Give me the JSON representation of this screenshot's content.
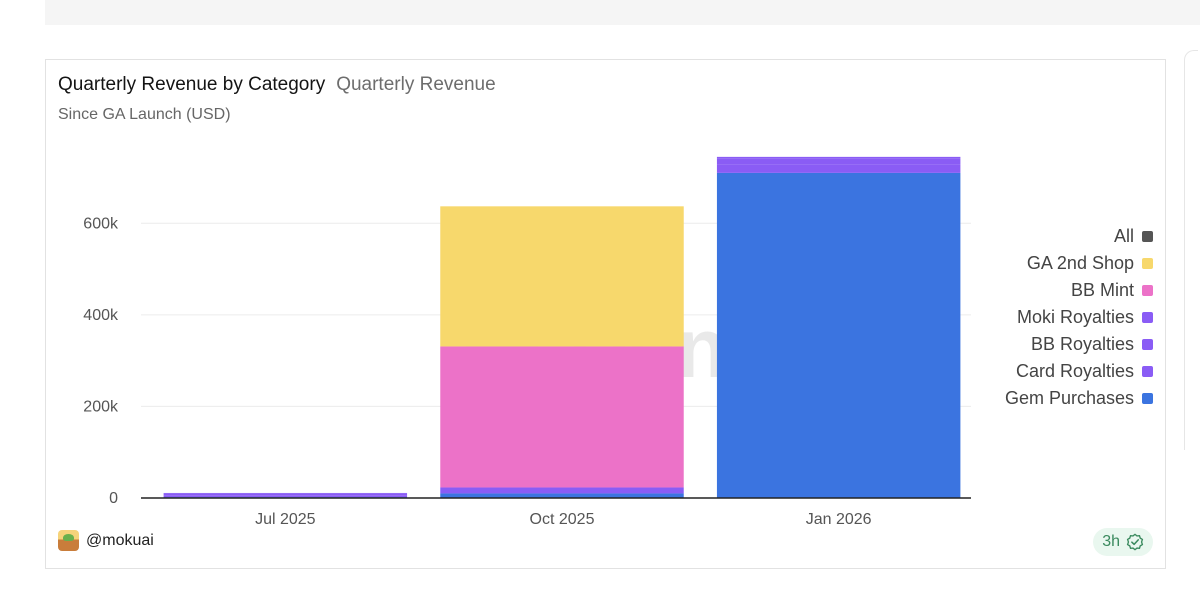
{
  "header": {
    "title": "Quarterly Revenue by Category",
    "subtitle": "Quarterly Revenue",
    "caption": "Since GA Launch (USD)"
  },
  "watermark": {
    "text": "Dune"
  },
  "footer": {
    "author": "@mokuai",
    "age": "3h",
    "icons": {
      "avatar": "avatar-icon",
      "status": "verified-check-icon"
    }
  },
  "colors": {
    "All": "#555555",
    "GA 2nd Shop": "#f7d86c",
    "BB Mint": "#ec72c8",
    "Moki Royalties": "#8a5cf5",
    "BB Royalties": "#8a5cf5",
    "Card Royalties": "#8a5cf5",
    "Gem Purchases": "#3b74e0"
  },
  "chart_data": {
    "type": "bar",
    "stacked": true,
    "title": "Quarterly Revenue by Category",
    "subtitle": "Quarterly Revenue",
    "caption": "Since GA Launch (USD)",
    "categories": [
      "Jul 2025",
      "Oct 2025",
      "Jan 2026"
    ],
    "ylim": [
      0,
      760000
    ],
    "yticks": [
      0,
      200000,
      400000,
      600000
    ],
    "ytick_labels": [
      "0",
      "200k",
      "400k",
      "600k"
    ],
    "grid": true,
    "legend_position": "right",
    "legend": [
      "All",
      "GA 2nd Shop",
      "BB Mint",
      "Moki Royalties",
      "BB Royalties",
      "Card Royalties",
      "Gem Purchases"
    ],
    "series": [
      {
        "name": "Gem Purchases",
        "color": "#3b74e0",
        "values": [
          2000,
          10000,
          710000
        ]
      },
      {
        "name": "Card Royalties",
        "color": "#8a5cf5",
        "values": [
          4000,
          13000,
          18000
        ]
      },
      {
        "name": "BB Royalties",
        "color": "#8a5cf5",
        "values": [
          3000,
          0,
          13000
        ]
      },
      {
        "name": "Moki Royalties",
        "color": "#8a5cf5",
        "values": [
          2000,
          0,
          4000
        ]
      },
      {
        "name": "BB Mint",
        "color": "#ec72c8",
        "values": [
          0,
          308000,
          0
        ]
      },
      {
        "name": "GA 2nd Shop",
        "color": "#f7d86c",
        "values": [
          0,
          306000,
          0
        ]
      }
    ]
  }
}
